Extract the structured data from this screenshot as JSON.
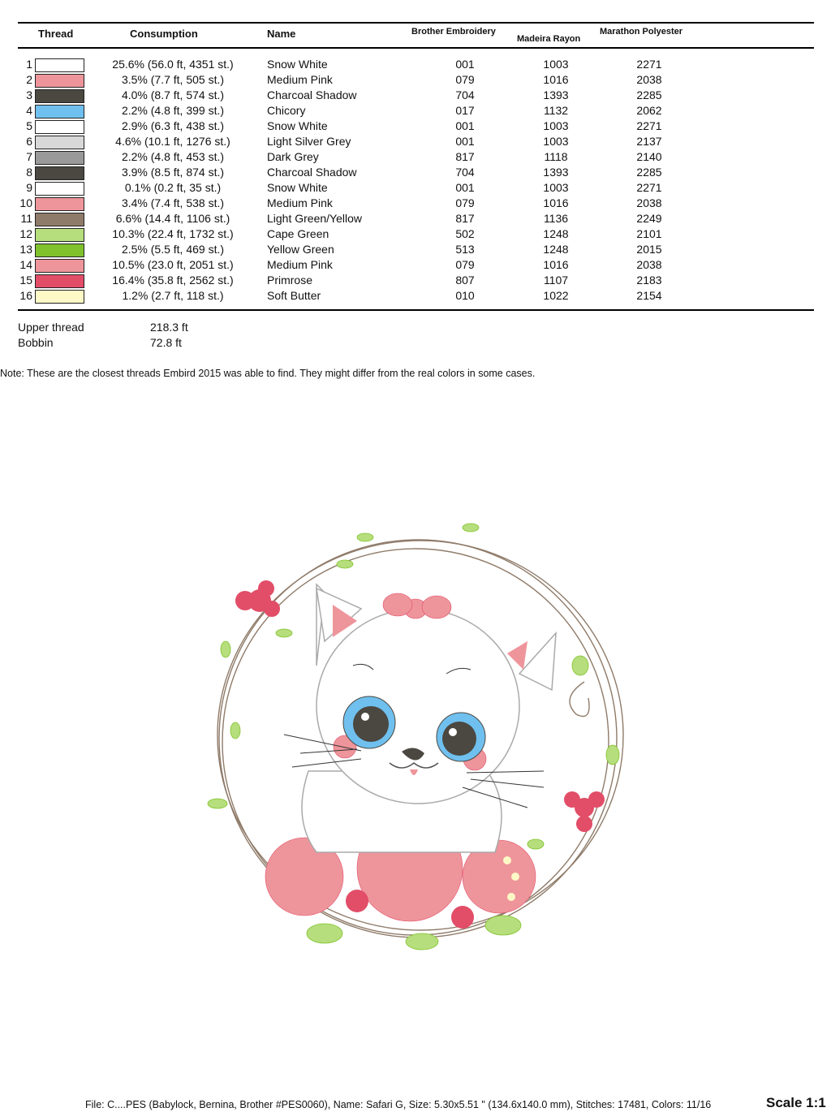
{
  "table": {
    "headers": {
      "thread": "Thread",
      "consumption": "Consumption",
      "name": "Name",
      "brother": "Brother Embroidery",
      "madeira": "Madeira Rayon",
      "marathon": "Marathon Polyester"
    },
    "rows": [
      {
        "n": "1",
        "color": "#ffffff",
        "consumption": "25.6% (56.0 ft, 4351 st.)",
        "name": "Snow White",
        "brother": "001",
        "madeira": "1003",
        "marathon": "2271"
      },
      {
        "n": "2",
        "color": "#ee959b",
        "consumption": "3.5% (7.7 ft, 505 st.)",
        "name": "Medium Pink",
        "brother": "079",
        "madeira": "1016",
        "marathon": "2038"
      },
      {
        "n": "3",
        "color": "#4b4741",
        "consumption": "4.0% (8.7 ft, 574 st.)",
        "name": "Charcoal Shadow",
        "brother": "704",
        "madeira": "1393",
        "marathon": "2285"
      },
      {
        "n": "4",
        "color": "#6fc0ee",
        "consumption": "2.2% (4.8 ft, 399 st.)",
        "name": "Chicory",
        "brother": "017",
        "madeira": "1132",
        "marathon": "2062"
      },
      {
        "n": "5",
        "color": "#ffffff",
        "consumption": "2.9% (6.3 ft, 438 st.)",
        "name": "Snow White",
        "brother": "001",
        "madeira": "1003",
        "marathon": "2271"
      },
      {
        "n": "6",
        "color": "#d8d8d8",
        "consumption": "4.6% (10.1 ft, 1276 st.)",
        "name": "Light Silver Grey",
        "brother": "001",
        "madeira": "1003",
        "marathon": "2137"
      },
      {
        "n": "7",
        "color": "#999999",
        "consumption": "2.2% (4.8 ft, 453 st.)",
        "name": "Dark Grey",
        "brother": "817",
        "madeira": "1118",
        "marathon": "2140"
      },
      {
        "n": "8",
        "color": "#4b4741",
        "consumption": "3.9% (8.5 ft, 874 st.)",
        "name": "Charcoal Shadow",
        "brother": "704",
        "madeira": "1393",
        "marathon": "2285"
      },
      {
        "n": "9",
        "color": "#ffffff",
        "consumption": "0.1% (0.2 ft, 35 st.)",
        "name": "Snow White",
        "brother": "001",
        "madeira": "1003",
        "marathon": "2271"
      },
      {
        "n": "10",
        "color": "#ee959b",
        "consumption": "3.4% (7.4 ft, 538 st.)",
        "name": "Medium Pink",
        "brother": "079",
        "madeira": "1016",
        "marathon": "2038"
      },
      {
        "n": "11",
        "color": "#8f7b69",
        "consumption": "6.6% (14.4 ft, 1106 st.)",
        "name": "Light Green/Yellow",
        "brother": "817",
        "madeira": "1136",
        "marathon": "2249"
      },
      {
        "n": "12",
        "color": "#b6de7c",
        "consumption": "10.3% (22.4 ft, 1732 st.)",
        "name": "Cape Green",
        "brother": "502",
        "madeira": "1248",
        "marathon": "2101"
      },
      {
        "n": "13",
        "color": "#80c22c",
        "consumption": "2.5% (5.5 ft, 469 st.)",
        "name": "Yellow Green",
        "brother": "513",
        "madeira": "1248",
        "marathon": "2015"
      },
      {
        "n": "14",
        "color": "#ee959b",
        "consumption": "10.5% (23.0 ft, 2051 st.)",
        "name": "Medium Pink",
        "brother": "079",
        "madeira": "1016",
        "marathon": "2038"
      },
      {
        "n": "15",
        "color": "#e24d68",
        "consumption": "16.4% (35.8 ft, 2562 st.)",
        "name": "Primrose",
        "brother": "807",
        "madeira": "1107",
        "marathon": "2183"
      },
      {
        "n": "16",
        "color": "#fdf9c6",
        "consumption": "1.2% (2.7 ft, 118 st.)",
        "name": "Soft Butter",
        "brother": "010",
        "madeira": "1022",
        "marathon": "2154"
      }
    ]
  },
  "totals": {
    "upper_label": "Upper thread",
    "upper_value": "218.3 ft",
    "bobbin_label": "Bobbin",
    "bobbin_value": "72.8 ft"
  },
  "note": "Note: These are the closest threads Embird 2015 was able to find. They might differ from the real colors in some cases.",
  "footer": {
    "file_info": "File: C....PES (Babylock, Bernina, Brother #PES0060), Name: Safari G, Size: 5.30x5.51 \" (134.6x140.0 mm), Stitches: 17481, Colors: 11/16",
    "scale": "Scale 1:1"
  }
}
